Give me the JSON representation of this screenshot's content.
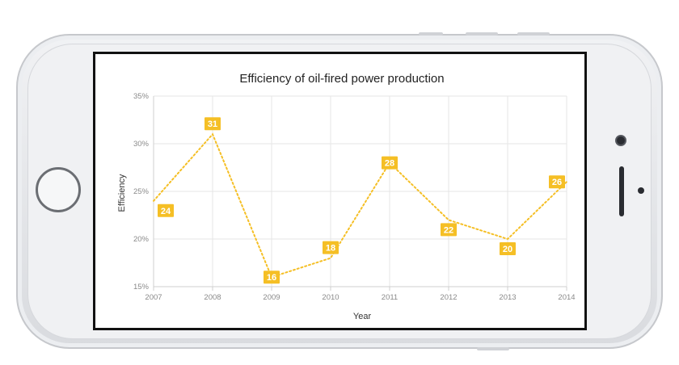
{
  "chart_data": {
    "type": "line",
    "title": "Efficiency of oil-fired power production",
    "xlabel": "Year",
    "ylabel": "Efficiency",
    "categories": [
      "2007",
      "2008",
      "2009",
      "2010",
      "2011",
      "2012",
      "2013",
      "2014"
    ],
    "values": [
      24,
      31,
      16,
      18,
      28,
      22,
      20,
      26
    ],
    "data_labels": [
      "24",
      "31",
      "16",
      "18",
      "28",
      "22",
      "20",
      "26"
    ],
    "y_ticks": [
      "15%",
      "20%",
      "25%",
      "30%",
      "35%"
    ],
    "ylim": [
      15,
      35
    ],
    "y_tick_values": [
      15,
      20,
      25,
      30,
      35
    ],
    "grid": true,
    "line_style": "dotted",
    "color": "#f5bf25"
  }
}
